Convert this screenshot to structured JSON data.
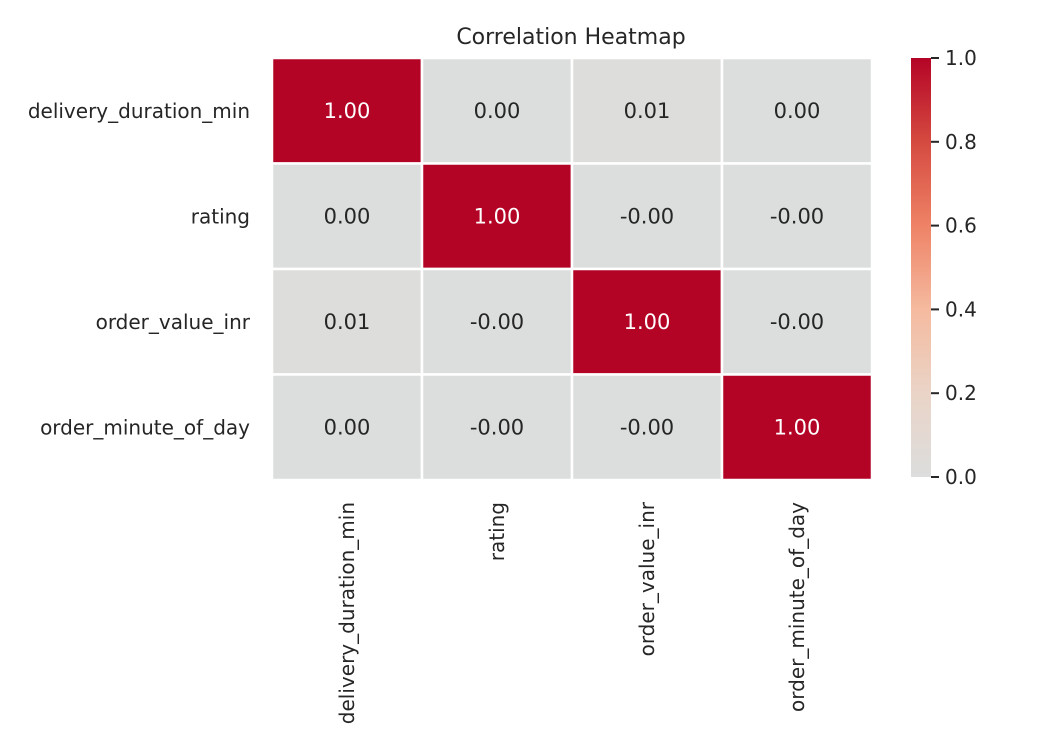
{
  "chart_data": {
    "type": "heatmap",
    "title": "Correlation Heatmap",
    "rows": [
      "delivery_duration_min",
      "rating",
      "order_value_inr",
      "order_minute_of_day"
    ],
    "columns": [
      "delivery_duration_min",
      "rating",
      "order_value_inr",
      "order_minute_of_day"
    ],
    "values": [
      [
        1.0,
        0.0,
        0.01,
        0.0
      ],
      [
        0.0,
        1.0,
        -0.0,
        -0.0
      ],
      [
        0.01,
        -0.0,
        1.0,
        -0.0
      ],
      [
        0.0,
        -0.0,
        -0.0,
        1.0
      ]
    ],
    "labels": [
      [
        "1.00",
        "0.00",
        "0.01",
        "0.00"
      ],
      [
        "0.00",
        "1.00",
        "-0.00",
        "-0.00"
      ],
      [
        "0.01",
        "-0.00",
        "1.00",
        "-0.00"
      ],
      [
        "0.00",
        "-0.00",
        "-0.00",
        "1.00"
      ]
    ],
    "colorbar": {
      "ticks": [
        0.0,
        0.2,
        0.4,
        0.6,
        0.8,
        1.0
      ],
      "tick_labels": [
        "0.0",
        "0.2",
        "0.4",
        "0.6",
        "0.8",
        "1.0"
      ],
      "range": [
        0.0,
        1.0
      ]
    },
    "colormap": "coolwarm-centered",
    "low_color": "#dcdddd",
    "high_color": "#b40426",
    "grid": false,
    "legend": "colorbar-right"
  }
}
